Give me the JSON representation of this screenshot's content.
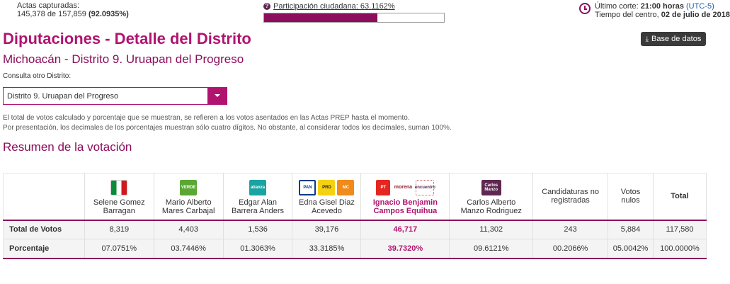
{
  "actas": {
    "label": "Actas capturadas:",
    "counts": "145,378 de 157,859",
    "percent": "(92.0935%)"
  },
  "participacion": {
    "label": "Participación ciudadana: 63.1162%",
    "value": 63.1162
  },
  "corte": {
    "prefix": "Último corte: ",
    "time": "21:00 horas",
    "utc": "(UTC-5)",
    "line2_prefix": "Tiempo del centro, ",
    "date": "02 de julio de 2018"
  },
  "header": {
    "title": "Diputaciones - Detalle del Distrito",
    "subtitle": "Michoacán - Distrito 9. Uruapan del Progreso",
    "db_button": "Base de datos"
  },
  "consulta": {
    "label": "Consulta otro Distrito:",
    "selected": "Distrito 9. Uruapan del Progreso"
  },
  "note": {
    "line1": "El total de votos calculado y porcentaje que se muestran, se refieren a los votos asentados en las Actas PREP hasta el momento.",
    "line2": "Por presentación, los decimales de los porcentajes muestran sólo cuatro dígitos. No obstante, al considerar todos los decimales, suman 100%."
  },
  "resumen_title": "Resumen de la votación",
  "table": {
    "candidates": [
      {
        "name1": "Selene Gomez",
        "name2": "Barragan",
        "logos": [
          "PRI"
        ],
        "votes": "8,319",
        "pct": "07.0751%"
      },
      {
        "name1": "Mario Alberto",
        "name2": "Mares Carbajal",
        "logos": [
          "VERDE"
        ],
        "votes": "4,403",
        "pct": "03.7446%"
      },
      {
        "name1": "Edgar Alan",
        "name2": "Barrera Anders",
        "logos": [
          "alianza"
        ],
        "votes": "1,536",
        "pct": "01.3063%"
      },
      {
        "name1": "Edna Gisel Diaz",
        "name2": "Acevedo",
        "logos": [
          "PAN",
          "PRD",
          "MC"
        ],
        "votes": "39,176",
        "pct": "33.3185%"
      },
      {
        "name1": "Ignacio Benjamin",
        "name2": "Campos Equihua",
        "logos": [
          "PT",
          "morena",
          "encuentro"
        ],
        "votes": "46,717",
        "pct": "39.7320%"
      },
      {
        "name1": "Carlos Alberto",
        "name2": "Manzo Rodriguez",
        "logos": [
          "Carlos Manzo"
        ],
        "votes": "11,302",
        "pct": "09.6121%"
      }
    ],
    "no_reg": {
      "label1": "Candidaturas no",
      "label2": "registradas",
      "votes": "243",
      "pct": "00.2066%"
    },
    "nulos": {
      "label1": "Votos",
      "label2": "nulos",
      "votes": "5,884",
      "pct": "05.0042%"
    },
    "total": {
      "label": "Total",
      "votes": "117,580",
      "pct": "100.0000%"
    },
    "row_labels": {
      "votes": "Total de Votos",
      "pct": "Porcentaje"
    }
  }
}
